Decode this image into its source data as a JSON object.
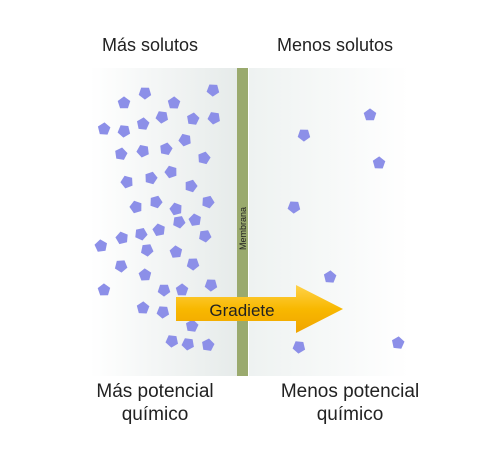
{
  "labels": {
    "left_top": "Más solutos",
    "right_top": "Menos solutos",
    "left_bottom_line1": "Más potencial",
    "left_bottom_line2": "químico",
    "right_bottom_line1": "Menos potencial",
    "right_bottom_line2": "químico"
  },
  "membrane": {
    "label": "Membrana",
    "color": "#9aaa6e"
  },
  "arrow": {
    "label": "Gradiete",
    "color": "#f8b800"
  },
  "molecules": {
    "color": "#8c8fe8",
    "left_count": 46,
    "right_count": 8
  },
  "colors": {
    "left_region": "#ecefef",
    "right_region": "#f5f7f6"
  }
}
